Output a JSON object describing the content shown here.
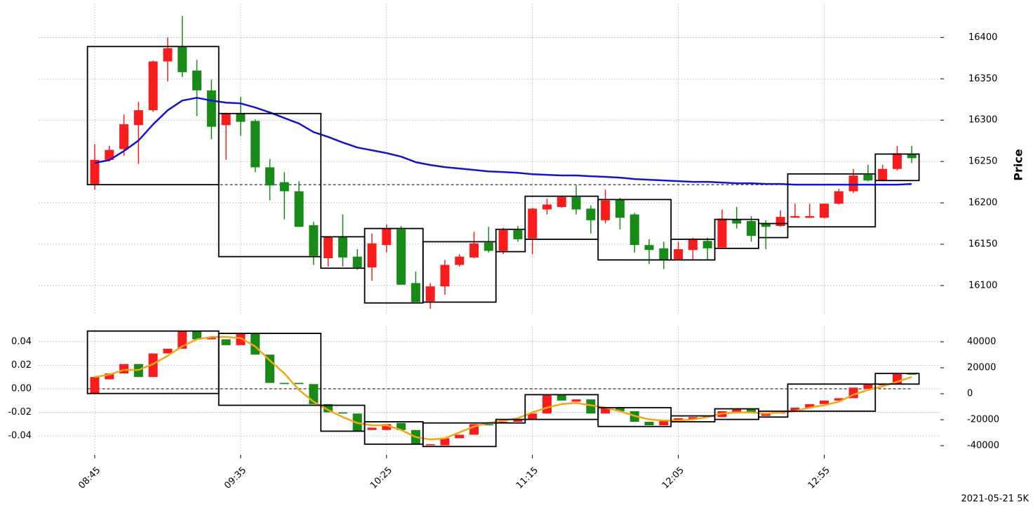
{
  "footer": "2021-05-21 5K",
  "chart_data": [
    {
      "type": "candlestick",
      "ylabel": "Price",
      "open": [
        16223,
        16252,
        16265,
        16294,
        16312,
        16371,
        16389,
        16360,
        16336,
        16294,
        16308,
        16299,
        16243,
        16225,
        16214,
        16173,
        16133,
        16159,
        16135,
        16122,
        16149,
        16168,
        16103,
        16081,
        16099,
        16125,
        16134,
        16152,
        16142,
        16167,
        16157,
        16192,
        16195,
        16207,
        16193,
        16179,
        16204,
        16186,
        16149,
        16145,
        16132,
        16143,
        16154,
        16146,
        16180,
        16178,
        16175,
        16172,
        16182,
        16182,
        16182,
        16199,
        16214,
        16234,
        16227,
        16241,
        16259
      ],
      "high": [
        16271,
        16269,
        16307,
        16322,
        16372,
        16400,
        16426,
        16373,
        16349,
        16309,
        16328,
        16301,
        16253,
        16237,
        16226,
        16177,
        16159,
        16186,
        16144,
        16163,
        16174,
        16172,
        16117,
        16103,
        16131,
        16138,
        16165,
        16171,
        16170,
        16172,
        16194,
        16205,
        16209,
        16221,
        16197,
        16216,
        16206,
        16188,
        16156,
        16153,
        16153,
        16158,
        16158,
        16192,
        16195,
        16184,
        16179,
        16191,
        16199,
        16199,
        16199,
        16217,
        16241,
        16246,
        16246,
        16269,
        16269
      ],
      "low": [
        16216,
        16250,
        16257,
        16247,
        16310,
        16347,
        16352,
        16305,
        16277,
        16252,
        16281,
        16237,
        16203,
        16180,
        16171,
        16125,
        16123,
        16123,
        16119,
        16106,
        16140,
        16101,
        16080,
        16072,
        16089,
        16123,
        16133,
        16140,
        16138,
        16153,
        16138,
        16186,
        16194,
        16186,
        16163,
        16175,
        16168,
        16140,
        16126,
        16120,
        16131,
        16131,
        16131,
        16146,
        16169,
        16153,
        16144,
        16171,
        16182,
        16182,
        16181,
        16198,
        16212,
        16226,
        16226,
        16239,
        16248
      ],
      "close": [
        16252,
        16264,
        16295,
        16312,
        16371,
        16387,
        16358,
        16336,
        16292,
        16308,
        16298,
        16243,
        16221,
        16214,
        16171,
        16136,
        16159,
        16134,
        16122,
        16151,
        16169,
        16101,
        16080,
        16099,
        16125,
        16135,
        16151,
        16142,
        16167,
        16156,
        16193,
        16198,
        16207,
        16192,
        16179,
        16203,
        16182,
        16149,
        16143,
        16131,
        16144,
        16156,
        16145,
        16181,
        16175,
        16160,
        16171,
        16183,
        16184,
        16184,
        16199,
        16214,
        16233,
        16227,
        16241,
        16260,
        16254
      ],
      "up_color": "#f81c1c",
      "down_color": "#188a18",
      "overlay": {
        "color": "#1414c8",
        "values": [
          16248.3,
          16251.7,
          16262.7,
          16275.4,
          16294.9,
          16311.9,
          16323.7,
          16327.1,
          16323.7,
          16321.2,
          16320.3,
          16315.3,
          16309.3,
          16302.5,
          16295.8,
          16285.6,
          16279.7,
          16272.9,
          16266.9,
          16263.6,
          16260.2,
          16255.9,
          16249.2,
          16245.8,
          16243.2,
          16241.5,
          16239.8,
          16238.1,
          16237.3,
          16236.4,
          16234.7,
          16233.9,
          16233.1,
          16233.1,
          16232.2,
          16231.4,
          16230.5,
          16228.8,
          16228,
          16227.1,
          16226.3,
          16225.4,
          16225.4,
          16224.6,
          16223.7,
          16223.7,
          16222.9,
          16222.9,
          16222,
          16222,
          16222,
          16222,
          16222,
          16222,
          16222,
          16222,
          16222.9
        ]
      },
      "reference_line": 16222,
      "boxes": [
        {
          "start": 0,
          "end": 8,
          "high": 16389,
          "low": 16222
        },
        {
          "start": 9,
          "end": 15,
          "high": 16308,
          "low": 16135
        },
        {
          "start": 16,
          "end": 18,
          "high": 16159,
          "low": 16121
        },
        {
          "start": 19,
          "end": 22,
          "high": 16169,
          "low": 16079
        },
        {
          "start": 23,
          "end": 27,
          "high": 16153,
          "low": 16080
        },
        {
          "start": 28,
          "end": 29,
          "high": 16168,
          "low": 16141
        },
        {
          "start": 30,
          "end": 34,
          "high": 16208,
          "low": 16156
        },
        {
          "start": 35,
          "end": 39,
          "high": 16204,
          "low": 16131
        },
        {
          "start": 40,
          "end": 42,
          "high": 16156,
          "low": 16131
        },
        {
          "start": 43,
          "end": 45,
          "high": 16180,
          "low": 16145
        },
        {
          "start": 46,
          "end": 47,
          "high": 16175,
          "low": 16158
        },
        {
          "start": 48,
          "end": 53,
          "high": 16235,
          "low": 16171
        },
        {
          "start": 54,
          "end": 56,
          "high": 16259,
          "low": 16227
        }
      ],
      "ylim": [
        16066,
        16441
      ],
      "yticks": [
        16100,
        16150,
        16200,
        16250,
        16300,
        16350,
        16400
      ],
      "grid": true
    },
    {
      "type": "candlestick",
      "categories": [
        "08:45",
        null,
        null,
        null,
        null,
        null,
        null,
        null,
        null,
        null,
        "09:35",
        null,
        null,
        null,
        null,
        null,
        null,
        null,
        null,
        null,
        "10:25",
        null,
        null,
        null,
        null,
        null,
        null,
        null,
        null,
        null,
        "11:15",
        null,
        null,
        null,
        null,
        null,
        null,
        null,
        null,
        null,
        "12:05",
        null,
        null,
        null,
        null,
        null,
        null,
        null,
        null,
        null,
        "12:55",
        null,
        null,
        null,
        null,
        null,
        null
      ],
      "open": [
        -0.004,
        0.008,
        0.013,
        0.021,
        0.01,
        0.03,
        0.034,
        0.049,
        0.042,
        0.042,
        0.037,
        0.047,
        0.029,
        0.005,
        0.005,
        0.004,
        -0.013,
        -0.02,
        -0.021,
        -0.035,
        -0.035,
        -0.029,
        -0.035,
        -0.048,
        -0.048,
        -0.042,
        -0.039,
        -0.03,
        -0.029,
        -0.028,
        -0.026,
        -0.021,
        -0.005,
        -0.011,
        -0.009,
        -0.021,
        -0.016,
        -0.019,
        -0.028,
        -0.031,
        -0.027,
        -0.026,
        -0.024,
        -0.024,
        -0.02,
        -0.017,
        -0.023,
        -0.021,
        -0.019,
        -0.016,
        -0.013,
        -0.01,
        -0.008,
        0,
        0.003,
        0.004,
        0.013
      ],
      "close": [
        0.01,
        0.013,
        0.021,
        0.01,
        0.03,
        0.034,
        0.049,
        0.042,
        0.044,
        0.037,
        0.047,
        0.029,
        0.005,
        0.004,
        0.004,
        -0.013,
        -0.02,
        -0.021,
        -0.036,
        -0.033,
        -0.03,
        -0.035,
        -0.047,
        -0.047,
        -0.042,
        -0.039,
        -0.03,
        -0.031,
        -0.028,
        -0.026,
        -0.021,
        -0.005,
        -0.01,
        -0.009,
        -0.021,
        -0.016,
        -0.019,
        -0.028,
        -0.031,
        -0.027,
        -0.025,
        -0.024,
        -0.023,
        -0.019,
        -0.017,
        -0.02,
        -0.021,
        -0.019,
        -0.016,
        -0.013,
        -0.01,
        -0.008,
        0.001,
        0.004,
        0.004,
        0.013,
        0.012
      ],
      "up_color": "#f81c1c",
      "down_color": "#188a18",
      "overlay": {
        "color": "#f5a516",
        "values": [
          0.01,
          0.012,
          0.016,
          0.016,
          0.021,
          0.028,
          0.036,
          0.042,
          0.044,
          0.044,
          0.043,
          0.036,
          0.024,
          0.013,
          -0.001,
          -0.011,
          -0.018,
          -0.024,
          -0.029,
          -0.031,
          -0.031,
          -0.035,
          -0.041,
          -0.043,
          -0.042,
          -0.037,
          -0.032,
          -0.029,
          -0.027,
          -0.025,
          -0.02,
          -0.016,
          -0.013,
          -0.012,
          -0.014,
          -0.016,
          -0.019,
          -0.023,
          -0.026,
          -0.027,
          -0.027,
          -0.026,
          -0.024,
          -0.021,
          -0.02,
          -0.02,
          -0.021,
          -0.02,
          -0.019,
          -0.016,
          -0.014,
          -0.011,
          -0.005,
          -0.001,
          0.002,
          0.006,
          0.01
        ]
      },
      "reference_line": 0,
      "boxes": [
        {
          "start": 0,
          "end": 8,
          "high": 0.049,
          "low": -0.004
        },
        {
          "start": 9,
          "end": 15,
          "high": 0.047,
          "low": -0.014
        },
        {
          "start": 16,
          "end": 18,
          "high": -0.014,
          "low": -0.036
        },
        {
          "start": 19,
          "end": 22,
          "high": -0.028,
          "low": -0.047
        },
        {
          "start": 23,
          "end": 27,
          "high": -0.029,
          "low": -0.049
        },
        {
          "start": 28,
          "end": 29,
          "high": -0.026,
          "low": -0.029
        },
        {
          "start": 30,
          "end": 34,
          "high": -0.005,
          "low": -0.026
        },
        {
          "start": 35,
          "end": 39,
          "high": -0.016,
          "low": -0.032
        },
        {
          "start": 40,
          "end": 42,
          "high": -0.023,
          "low": -0.028
        },
        {
          "start": 43,
          "end": 45,
          "high": -0.017,
          "low": -0.026
        },
        {
          "start": 46,
          "end": 47,
          "high": -0.019,
          "low": -0.024
        },
        {
          "start": 48,
          "end": 53,
          "high": 0.004,
          "low": -0.019
        },
        {
          "start": 54,
          "end": 56,
          "high": 0.013,
          "low": 0.004
        }
      ],
      "ylim": [
        -0.056,
        0.053
      ],
      "yticks": [
        0.04,
        0.02,
        {
          "value": 0,
          "label": "0.00"
        },
        -0.02,
        -0.04
      ],
      "y2lim": [
        -47000,
        51900
      ],
      "y2ticks": [
        40000,
        20000,
        0,
        -20000,
        -40000
      ],
      "grid": true
    }
  ]
}
